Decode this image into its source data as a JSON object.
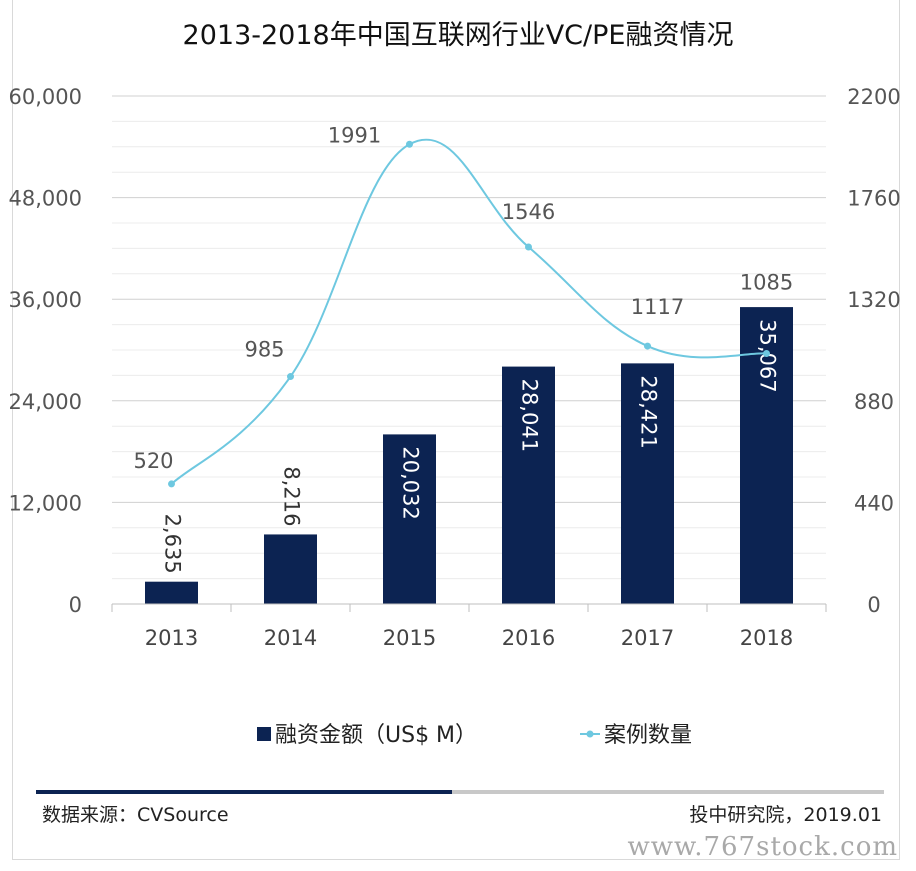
{
  "chart_data": {
    "type": "bar-line-combo",
    "title": "2013-2018年中国互联网行业VC/PE融资情况",
    "categories": [
      "2013",
      "2014",
      "2015",
      "2016",
      "2017",
      "2018"
    ],
    "series": [
      {
        "name": "融资金额（US$ M）",
        "type": "bar",
        "axis": "left",
        "values": [
          2635,
          8216,
          20032,
          28041,
          28421,
          35067
        ],
        "labels": [
          "2,635",
          "8,216",
          "20,032",
          "28,041",
          "28,421",
          "35,067"
        ],
        "color": "#0c2352"
      },
      {
        "name": "案例数量",
        "type": "line",
        "axis": "right",
        "values": [
          520,
          985,
          1991,
          1546,
          1117,
          1085
        ],
        "labels": [
          "520",
          "985",
          "1991",
          "1546",
          "1117",
          "1085"
        ],
        "color": "#6ec8e0"
      }
    ],
    "y_left": {
      "min": 0,
      "max": 60000,
      "ticks": [
        "0",
        "12,000",
        "24,000",
        "36,000",
        "48,000",
        "60,000"
      ]
    },
    "y_right": {
      "min": 0,
      "max": 2200,
      "ticks": [
        "0",
        "440",
        "880",
        "1320",
        "1760",
        "2200"
      ]
    },
    "grid": true,
    "legend_position": "bottom"
  },
  "footer": {
    "source": "数据来源：CVSource",
    "publisher": "投中研究院，2019.01"
  },
  "watermark": "www.767stock.com"
}
